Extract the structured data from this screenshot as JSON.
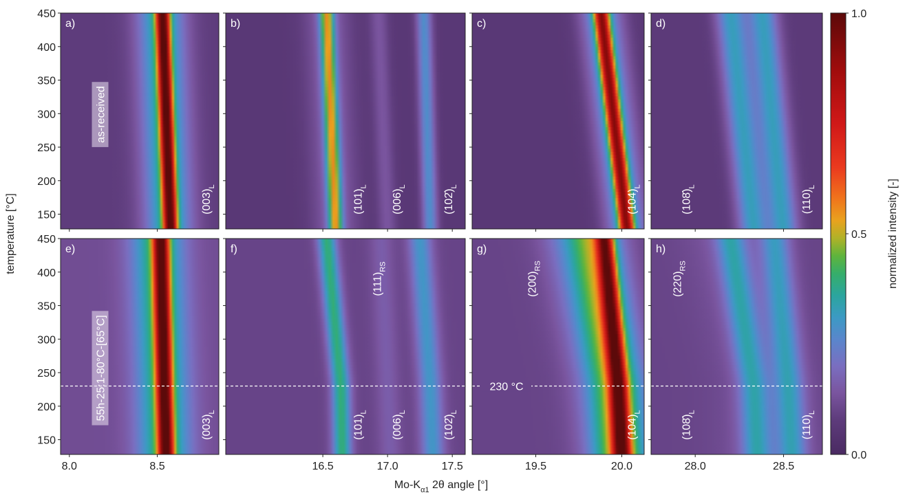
{
  "chart_data": {
    "type": "heatmap",
    "ylabel": "temperature [°C]",
    "xlabel": {
      "text": "Mo-K",
      "sub": "α1",
      "rest": " 2θ angle [°]"
    },
    "ylim": [
      128,
      450
    ],
    "yticks": [
      150,
      200,
      250,
      300,
      350,
      400,
      450
    ],
    "colorbar": {
      "label": "normalized intensity [-]",
      "lim": [
        0,
        1
      ],
      "ticks": [
        {
          "value": 0,
          "label": "0.0"
        },
        0.5,
        {
          "value": 1,
          "label": "1.0"
        }
      ],
      "colormap": [
        {
          "value": 0,
          "color": "#4a2a62"
        },
        {
          "value": 0.08,
          "color": "#5e3c7c"
        },
        {
          "value": 0.14,
          "color": "#7a559f"
        },
        {
          "value": 0.2,
          "color": "#7a6ec0"
        },
        {
          "value": 0.26,
          "color": "#5a86cc"
        },
        {
          "value": 0.31,
          "color": "#3c9ac4"
        },
        {
          "value": 0.36,
          "color": "#2ba59e"
        },
        {
          "value": 0.41,
          "color": "#36ae6a"
        },
        {
          "value": 0.45,
          "color": "#5fb43c"
        },
        {
          "value": 0.49,
          "color": "#b0b228"
        },
        {
          "value": 0.53,
          "color": "#e9a21e"
        },
        {
          "value": 0.58,
          "color": "#f0741c"
        },
        {
          "value": 0.65,
          "color": "#ea3a1f"
        },
        {
          "value": 0.75,
          "color": "#d01818"
        },
        {
          "value": 0.87,
          "color": "#a00c0c"
        },
        {
          "value": 1,
          "color": "#5c0a0a"
        }
      ]
    },
    "rows": [
      {
        "label": "as-received"
      },
      {
        "label": "55h-25:1-80°C-[65°C]",
        "hline": 230,
        "hline_label": "230 °C"
      }
    ],
    "columns": [
      {
        "xlim": [
          7.95,
          8.85
        ],
        "xticks": [
          {
            "value": 8,
            "label": "8.0"
          },
          8.5
        ]
      },
      {
        "xlim": [
          15.75,
          17.6
        ],
        "xticks": [
          16.5,
          {
            "value": 17,
            "label": "17.0"
          },
          17.5
        ]
      },
      {
        "xlim": [
          19.13,
          20.13
        ],
        "xticks": [
          19.5,
          {
            "value": 20,
            "label": "20.0"
          }
        ]
      },
      {
        "xlim": [
          27.75,
          28.72
        ],
        "xticks": [
          {
            "value": 28,
            "label": "28.0"
          },
          28.5
        ]
      }
    ],
    "panels": [
      {
        "label": "a)",
        "background": 0.08,
        "temperature": [
          128,
          450
        ],
        "peaks": [
          {
            "center": [
              8.565,
              8.52
            ],
            "width": 0.22,
            "intensity": 0.3
          },
          {
            "center": [
              8.575,
              8.53
            ],
            "width": 0.06,
            "intensity": 0.72
          }
        ],
        "annotations": [
          {
            "text": "(003)",
            "sub": "L",
            "x": 8.8,
            "y": 172
          }
        ]
      },
      {
        "label": "b)",
        "background": 0.06,
        "temperature": [
          128,
          450
        ],
        "peaks": [
          {
            "center": [
              16.6,
              16.53
            ],
            "width": 0.3,
            "intensity": 0.1
          },
          {
            "center": [
              16.6,
              16.53
            ],
            "width": 0.09,
            "intensity": 0.4
          },
          {
            "center": [
              17.0,
              16.93
            ],
            "width": 0.12,
            "intensity": 0.08
          },
          {
            "center": [
              17.33,
              17.28
            ],
            "width": 0.1,
            "intensity": 0.22
          }
        ],
        "annotations": [
          {
            "text": "(101)",
            "sub": "L",
            "x": 16.8,
            "y": 172
          },
          {
            "text": "(006)",
            "sub": "L",
            "x": 17.1,
            "y": 172
          },
          {
            "text": "(102̄)",
            "sub": "L",
            "x": 17.5,
            "y": 172
          }
        ]
      },
      {
        "label": "c)",
        "background": 0.06,
        "temperature": [
          128,
          450
        ],
        "peaks": [
          {
            "center": [
              20.03,
              19.88
            ],
            "width": 0.2,
            "intensity": 0.25
          },
          {
            "center": [
              20.03,
              19.88
            ],
            "width": 0.07,
            "intensity": 0.62
          }
        ],
        "annotations": [
          {
            "text": "(104)",
            "sub": "L",
            "x": 20.08,
            "y": 172
          }
        ]
      },
      {
        "label": "d)",
        "background": 0.07,
        "temperature": [
          128,
          450
        ],
        "peaks": [
          {
            "center": [
              28.33,
              28.2
            ],
            "width": 0.14,
            "intensity": 0.25
          },
          {
            "center": [
              28.5,
              28.38
            ],
            "width": 0.14,
            "intensity": 0.25
          }
        ],
        "annotations": [
          {
            "text": "(108̄)",
            "sub": "L",
            "x": 27.97,
            "y": 172
          },
          {
            "text": "(110)",
            "sub": "L",
            "x": 28.65,
            "y": 172
          }
        ]
      },
      {
        "label": "e)",
        "background": 0.12,
        "temperature": [
          128,
          230,
          450
        ],
        "peaks": [
          {
            "center": [
              8.54,
              8.53,
              8.5
            ],
            "width": 0.25,
            "intensity": 0.3
          },
          {
            "center": [
              8.55,
              8.54,
              8.52
            ],
            "width": 0.07,
            "intensity": 0.7
          }
        ],
        "annotations": [
          {
            "text": "(003)",
            "sub": "L",
            "x": 8.8,
            "y": 172
          }
        ]
      },
      {
        "label": "f)",
        "background": 0.1,
        "temperature": [
          128,
          230,
          450
        ],
        "peaks": [
          {
            "center": [
              16.65,
              16.64,
              16.53
            ],
            "width": 0.12,
            "intensity": 0.3
          },
          {
            "center": [
              17.02,
              17.0,
              16.95
            ],
            "width": 0.15,
            "intensity": 0.06
          },
          {
            "center": [
              17.35,
              17.33,
              17.25
            ],
            "width": 0.15,
            "intensity": 0.2
          }
        ],
        "annotations": [
          {
            "text": "(101)",
            "sub": "L",
            "x": 16.8,
            "y": 172
          },
          {
            "text": "(006)",
            "sub": "L",
            "x": 17.1,
            "y": 172
          },
          {
            "text": "(102̄)",
            "sub": "L",
            "x": 17.5,
            "y": 172
          },
          {
            "text": "(111)",
            "sub": "RS",
            "x": 16.95,
            "y": 390
          }
        ]
      },
      {
        "label": "g)",
        "background": 0.1,
        "temperature": [
          128,
          230,
          450
        ],
        "peaks": [
          {
            "center": [
              19.95,
              19.9,
              19.72
            ],
            "width": 0.3,
            "intensity": 0.15
          },
          {
            "center": [
              20.0,
              19.98,
              19.85
            ],
            "width": 0.25,
            "intensity": 0.3
          },
          {
            "center": [
              20.0,
              19.98,
              19.9
            ],
            "width": 0.08,
            "intensity": 0.6
          }
        ],
        "annotations": [
          {
            "text": "(104)",
            "sub": "L",
            "x": 20.08,
            "y": 172
          },
          {
            "text": "(200)",
            "sub": "RS",
            "x": 19.5,
            "y": 390
          }
        ]
      },
      {
        "label": "h)",
        "background": 0.1,
        "temperature": [
          128,
          230,
          450
        ],
        "peaks": [
          {
            "center": [
              28.4,
              28.4,
              28.2
            ],
            "width": 0.4,
            "intensity": 0.05
          },
          {
            "center": [
              28.35,
              28.33,
              28.2
            ],
            "width": 0.14,
            "intensity": 0.2
          },
          {
            "center": [
              28.55,
              28.53,
              28.45
            ],
            "width": 0.14,
            "intensity": 0.2
          }
        ],
        "annotations": [
          {
            "text": "(108̄)",
            "sub": "L",
            "x": 27.97,
            "y": 172
          },
          {
            "text": "(110)",
            "sub": "L",
            "x": 28.65,
            "y": 172
          },
          {
            "text": "(220)",
            "sub": "RS",
            "x": 27.92,
            "y": 390
          }
        ]
      }
    ]
  }
}
